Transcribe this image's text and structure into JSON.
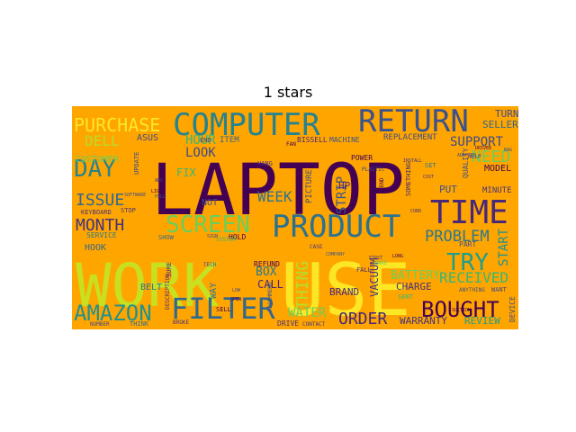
{
  "chart_data": {
    "type": "wordcloud",
    "title": "1 stars",
    "background_color": "#FFA500",
    "colormap": "viridis",
    "words": [
      {
        "text": "LAPTOP",
        "rank": 1,
        "color": "#440154"
      },
      {
        "text": "WORK",
        "rank": 2,
        "color": "#C8E020"
      },
      {
        "text": "USE",
        "rank": 3,
        "color": "#FDE725"
      },
      {
        "text": "PRODUCT",
        "rank": 4,
        "color": "#2C728E"
      },
      {
        "text": "TIME",
        "rank": 5,
        "color": "#482878"
      },
      {
        "text": "COMPUTER",
        "rank": 6,
        "color": "#26828E"
      },
      {
        "text": "RETURN",
        "rank": 7,
        "color": "#3B528B"
      },
      {
        "text": "FILTER",
        "rank": 8,
        "color": "#31688E"
      },
      {
        "text": "SCREEN",
        "rank": 9,
        "color": "#6CCE59"
      },
      {
        "text": "AMAZON",
        "rank": 10,
        "color": "#21918C"
      },
      {
        "text": "BOUGHT",
        "rank": 11,
        "color": "#440154"
      },
      {
        "text": "TRY",
        "rank": 12,
        "color": "#1F9E89"
      },
      {
        "text": "DAY",
        "rank": 13,
        "color": "#26828E"
      },
      {
        "text": "PURCHASE",
        "rank": 14,
        "color": "#FDE725"
      },
      {
        "text": "MONTH",
        "rank": 15,
        "color": "#46327E"
      },
      {
        "text": "ORDER",
        "rank": 16,
        "color": "#482878"
      },
      {
        "text": "PROBLEM",
        "rank": 17,
        "color": "#2A788E"
      },
      {
        "text": "ISSUE",
        "rank": 18,
        "color": "#31688E"
      },
      {
        "text": "WEEK",
        "rank": 19,
        "color": "#2C728E"
      },
      {
        "text": "NEED",
        "rank": 20,
        "color": "#6CCE59"
      },
      {
        "text": "SUPPORT",
        "rank": 21,
        "color": "#3E4A89"
      },
      {
        "text": "DELL",
        "rank": 22,
        "color": "#B4DE2C"
      },
      {
        "text": "LOOK",
        "rank": 23,
        "color": "#3E4A89"
      },
      {
        "text": "HOUR",
        "rank": 24,
        "color": "#35B779"
      },
      {
        "text": "THING",
        "rank": 25,
        "color": "#B4DE2C"
      },
      {
        "text": "WATER",
        "rank": 26,
        "color": "#6CCE59"
      },
      {
        "text": "RECEIVED",
        "rank": 27,
        "color": "#35B779"
      },
      {
        "text": "BOX",
        "rank": 28,
        "color": "#2A788E"
      },
      {
        "text": "CALL",
        "rank": 29,
        "color": "#482878"
      },
      {
        "text": "START",
        "rank": 30,
        "color": "#21918C"
      },
      {
        "text": "CHARGE",
        "rank": 31,
        "color": "#46327E"
      },
      {
        "text": "WARRANTY",
        "rank": 32,
        "color": "#46327E"
      },
      {
        "text": "REVIEW",
        "rank": 33,
        "color": "#1F9E89"
      },
      {
        "text": "BRAND",
        "rank": 34,
        "color": "#482878"
      },
      {
        "text": "STRIP",
        "rank": 35,
        "color": "#3B528B"
      },
      {
        "text": "BATTERY",
        "rank": 36,
        "color": "#6CCE59"
      },
      {
        "text": "VACUUM",
        "rank": 37,
        "color": "#46327E"
      },
      {
        "text": "HOOK",
        "rank": 38,
        "color": "#31688E"
      },
      {
        "text": "FIX",
        "rank": 39,
        "color": "#35B779"
      },
      {
        "text": "NOT",
        "rank": 40,
        "color": "#3E4A89"
      },
      {
        "text": "SELLER",
        "rank": 41,
        "color": "#31688E"
      },
      {
        "text": "TURN",
        "rank": 42,
        "color": "#3E4A89"
      },
      {
        "text": "PUT",
        "rank": 43,
        "color": "#3B528B"
      },
      {
        "text": "MODEL",
        "rank": 44,
        "color": "#440154"
      },
      {
        "text": "MINUTE",
        "rank": 45,
        "color": "#46327E"
      },
      {
        "text": "CUSTOMER",
        "rank": 46,
        "color": "#6CCE59"
      },
      {
        "text": "SERVICE",
        "rank": 47,
        "color": "#2A788E"
      },
      {
        "text": "REPLACEMENT",
        "rank": 48,
        "color": "#3E4A89"
      },
      {
        "text": "ASUS",
        "rank": 49,
        "color": "#3E4A89"
      },
      {
        "text": "BISSELL",
        "rank": 50,
        "color": "#482878"
      },
      {
        "text": "MACHINE",
        "rank": 51,
        "color": "#3B528B"
      },
      {
        "text": "HP",
        "rank": 52,
        "color": "#482878"
      },
      {
        "text": "WAY",
        "rank": 53,
        "color": "#2A788E"
      },
      {
        "text": "BELT",
        "rank": 54,
        "color": "#2A788E"
      },
      {
        "text": "PART",
        "rank": 55,
        "color": "#3B528B"
      },
      {
        "text": "DEVICE",
        "rank": 56,
        "color": "#3E4A89"
      },
      {
        "text": "DRIVE",
        "rank": 57,
        "color": "#46327E"
      },
      {
        "text": "HOLD",
        "rank": 58,
        "color": "#440154"
      },
      {
        "text": "REFUND",
        "rank": 59,
        "color": "#440154"
      },
      {
        "text": "SENT",
        "rank": 60,
        "color": "#35B779"
      },
      {
        "text": "FALL",
        "rank": 61,
        "color": "#482878"
      },
      {
        "text": "POWER",
        "rank": 62,
        "color": "#440154"
      },
      {
        "text": "QUALITY",
        "rank": 63,
        "color": "#3B528B"
      },
      {
        "text": "PICTURE",
        "rank": 64,
        "color": "#3E4A89"
      },
      {
        "text": "HANG",
        "rank": 65,
        "color": "#46327E"
      },
      {
        "text": "ITEM",
        "rank": 66,
        "color": "#31688E"
      },
      {
        "text": "END",
        "rank": 67,
        "color": "#3E4A89"
      },
      {
        "text": "SHOW",
        "rank": 68,
        "color": "#31688E"
      },
      {
        "text": "SELL",
        "rank": 69,
        "color": "#440154"
      },
      {
        "text": "SET",
        "rank": 70,
        "color": "#2A788E"
      },
      {
        "text": "KEYBOARD",
        "rank": 71,
        "color": "#46327E"
      },
      {
        "text": "STOP",
        "rank": 72,
        "color": "#46327E"
      },
      {
        "text": "THINK",
        "rank": 73,
        "color": "#2C728E"
      },
      {
        "text": "NUMBER",
        "rank": 74,
        "color": "#3E4A89"
      },
      {
        "text": "UPDATE",
        "rank": 75,
        "color": "#3E4A89"
      },
      {
        "text": "SOMETHING",
        "rank": 76,
        "color": "#482878"
      },
      {
        "text": "SEND",
        "rank": 77,
        "color": "#440154"
      },
      {
        "text": "WANT",
        "rank": 78,
        "color": "#3E4A89"
      },
      {
        "text": "HELP",
        "rank": 79,
        "color": "#46327E"
      },
      {
        "text": "SURE",
        "rank": 80,
        "color": "#46327E"
      },
      {
        "text": "RECOMMEND",
        "rank": 81,
        "color": "#3B528B"
      },
      {
        "text": "ANYTHING",
        "rank": 82,
        "color": "#3B528B"
      },
      {
        "text": "CONTACT",
        "rank": 83,
        "color": "#46327E"
      },
      {
        "text": "PLASTIC",
        "rank": 84,
        "color": "#3E4A89"
      },
      {
        "text": "FAN",
        "rank": 85,
        "color": "#440154"
      },
      {
        "text": "DESCRIPTION",
        "rank": 86,
        "color": "#482878"
      },
      {
        "text": "BROKE",
        "rank": 87,
        "color": "#46327E"
      },
      {
        "text": "TECH",
        "rank": 88,
        "color": "#3E4A89"
      },
      {
        "text": "MAKE",
        "rank": 89,
        "color": "#6CCE59"
      },
      {
        "text": "CASE",
        "rank": 90,
        "color": "#46327E"
      },
      {
        "text": "SYSTEM",
        "rank": 91,
        "color": "#35B779"
      },
      {
        "text": "CORD",
        "rank": 92,
        "color": "#482878"
      },
      {
        "text": "COST",
        "rank": 93,
        "color": "#46327E"
      },
      {
        "text": "COMPANY",
        "rank": 94,
        "color": "#3B528B"
      },
      {
        "text": "LONG",
        "rank": 95,
        "color": "#440154"
      },
      {
        "text": "FIRST",
        "rank": 96,
        "color": "#46327E"
      },
      {
        "text": "LIGHT",
        "rank": 97,
        "color": "#440154"
      },
      {
        "text": "ADD",
        "rank": 98,
        "color": "#46327E"
      },
      {
        "text": "FULL",
        "rank": 99,
        "color": "#3E4A89"
      },
      {
        "text": "LOW",
        "rank": 100,
        "color": "#3E4A89"
      },
      {
        "text": "OPEN",
        "rank": 101,
        "color": "#440154"
      },
      {
        "text": "SIGN",
        "rank": 102,
        "color": "#3E4A89"
      },
      {
        "text": "ADAPTER",
        "rank": 103,
        "color": "#3E4A89"
      },
      {
        "text": "DRIVER",
        "rank": 104,
        "color": "#440154"
      },
      {
        "text": "SOFTWARE",
        "rank": 105,
        "color": "#3E4A89"
      },
      {
        "text": "INSTALL",
        "rank": 106,
        "color": "#46327E"
      },
      {
        "text": "SUCTION",
        "rank": 107,
        "color": "#440154"
      },
      {
        "text": "BAG",
        "rank": 108,
        "color": "#3E4A89"
      }
    ]
  }
}
